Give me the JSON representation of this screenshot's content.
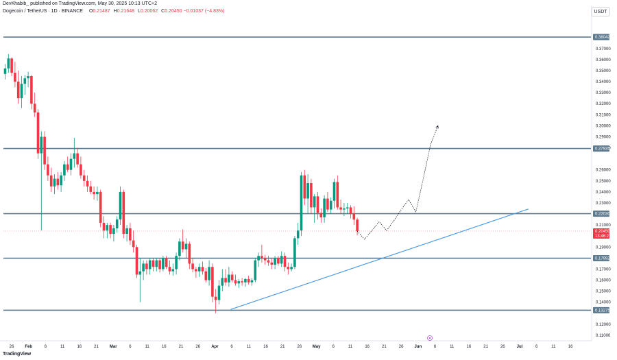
{
  "header": {
    "publish_line": "DevKhabib_ published on TradingView.com, May 30, 2025 10:13 UTC+2",
    "symbol": "Dogecoin / TetherUS · 1D · BINANCE",
    "ohlc": [
      {
        "label": "O",
        "value": "0.21487"
      },
      {
        "label": "H",
        "value": "0.21648"
      },
      {
        "label": "L",
        "value": "0.20062"
      },
      {
        "label": "C",
        "value": "0.20450"
      }
    ],
    "change": "−0.01037 (−4.83%)",
    "currency": "USDT"
  },
  "footer": {
    "logo": "TradingView"
  },
  "colors": {
    "up": "#089981",
    "down": "#f23645",
    "level": "#5d7a8f",
    "trend": "#4c9be6",
    "projection": "#131722",
    "event": "#b055d6"
  },
  "chart_data": {
    "type": "candlestick",
    "price_axis": {
      "ticks": [
        "0.37000",
        "0.36000",
        "0.35000",
        "0.34000",
        "0.33000",
        "0.32000",
        "0.31000",
        "0.30000",
        "0.29000",
        "0.28000",
        "0.26000",
        "0.25000",
        "0.24000",
        "0.23000",
        "0.21000",
        "0.19000",
        "0.17000",
        "0.16000",
        "0.15000",
        "0.14000",
        "0.12000",
        "0.11000"
      ],
      "range": [
        0.1075,
        0.3935
      ]
    },
    "date_axis": {
      "ticks": [
        "26",
        "Feb",
        "6",
        "11",
        "16",
        "21",
        "Mar",
        "6",
        "11",
        "16",
        "21",
        "26",
        "Apr",
        "6",
        "11",
        "16",
        "21",
        "26",
        "May",
        "6",
        "11",
        "16",
        "21",
        "26",
        "Jun",
        "6",
        "11",
        "16",
        "21",
        "26",
        "Jul",
        "6",
        "11",
        "16"
      ]
    },
    "levels": [
      "0.38042",
      "0.27935",
      "0.22030",
      "0.17992",
      "0.13275"
    ],
    "last_price": {
      "value": "0.20450",
      "countdown": "13:46:27"
    },
    "candles": [
      [
        0.347,
        0.356,
        0.342,
        0.352
      ],
      [
        0.352,
        0.365,
        0.348,
        0.361
      ],
      [
        0.361,
        0.362,
        0.345,
        0.348
      ],
      [
        0.348,
        0.358,
        0.335,
        0.34
      ],
      [
        0.34,
        0.35,
        0.32,
        0.325
      ],
      [
        0.325,
        0.345,
        0.316,
        0.338
      ],
      [
        0.338,
        0.346,
        0.328,
        0.343
      ],
      [
        0.343,
        0.349,
        0.335,
        0.345
      ],
      [
        0.345,
        0.346,
        0.315,
        0.32
      ],
      [
        0.32,
        0.33,
        0.308,
        0.312
      ],
      [
        0.312,
        0.315,
        0.27,
        0.275
      ],
      [
        0.275,
        0.295,
        0.205,
        0.29
      ],
      [
        0.29,
        0.295,
        0.26,
        0.265
      ],
      [
        0.265,
        0.272,
        0.25,
        0.255
      ],
      [
        0.255,
        0.262,
        0.24,
        0.245
      ],
      [
        0.245,
        0.256,
        0.238,
        0.252
      ],
      [
        0.252,
        0.258,
        0.242,
        0.246
      ],
      [
        0.246,
        0.258,
        0.24,
        0.255
      ],
      [
        0.255,
        0.268,
        0.25,
        0.265
      ],
      [
        0.265,
        0.272,
        0.258,
        0.26
      ],
      [
        0.26,
        0.275,
        0.255,
        0.27
      ],
      [
        0.27,
        0.289,
        0.262,
        0.275
      ],
      [
        0.275,
        0.28,
        0.262,
        0.265
      ],
      [
        0.265,
        0.272,
        0.252,
        0.255
      ],
      [
        0.255,
        0.26,
        0.245,
        0.25
      ],
      [
        0.25,
        0.255,
        0.24,
        0.245
      ],
      [
        0.245,
        0.25,
        0.238,
        0.24
      ],
      [
        0.24,
        0.245,
        0.233,
        0.238
      ],
      [
        0.238,
        0.245,
        0.232,
        0.24
      ],
      [
        0.24,
        0.242,
        0.208,
        0.212
      ],
      [
        0.212,
        0.218,
        0.198,
        0.205
      ],
      [
        0.205,
        0.212,
        0.198,
        0.21
      ],
      [
        0.21,
        0.212,
        0.198,
        0.202
      ],
      [
        0.202,
        0.21,
        0.195,
        0.207
      ],
      [
        0.207,
        0.218,
        0.203,
        0.215
      ],
      [
        0.215,
        0.245,
        0.21,
        0.24
      ],
      [
        0.24,
        0.242,
        0.198,
        0.202
      ],
      [
        0.202,
        0.21,
        0.195,
        0.207
      ],
      [
        0.207,
        0.212,
        0.192,
        0.196
      ],
      [
        0.196,
        0.205,
        0.185,
        0.19
      ],
      [
        0.19,
        0.192,
        0.162,
        0.165
      ],
      [
        0.165,
        0.18,
        0.14,
        0.168
      ],
      [
        0.168,
        0.178,
        0.16,
        0.175
      ],
      [
        0.175,
        0.178,
        0.165,
        0.17
      ],
      [
        0.17,
        0.18,
        0.165,
        0.178
      ],
      [
        0.178,
        0.18,
        0.168,
        0.172
      ],
      [
        0.172,
        0.18,
        0.168,
        0.178
      ],
      [
        0.178,
        0.18,
        0.167,
        0.17
      ],
      [
        0.17,
        0.182,
        0.168,
        0.18
      ],
      [
        0.18,
        0.182,
        0.17,
        0.172
      ],
      [
        0.172,
        0.178,
        0.165,
        0.168
      ],
      [
        0.168,
        0.175,
        0.164,
        0.17
      ],
      [
        0.17,
        0.185,
        0.165,
        0.182
      ],
      [
        0.182,
        0.198,
        0.178,
        0.195
      ],
      [
        0.195,
        0.206,
        0.185,
        0.188
      ],
      [
        0.188,
        0.198,
        0.18,
        0.193
      ],
      [
        0.193,
        0.195,
        0.17,
        0.175
      ],
      [
        0.175,
        0.18,
        0.167,
        0.17
      ],
      [
        0.17,
        0.172,
        0.162,
        0.168
      ],
      [
        0.168,
        0.175,
        0.163,
        0.172
      ],
      [
        0.172,
        0.177,
        0.165,
        0.168
      ],
      [
        0.168,
        0.171,
        0.158,
        0.16
      ],
      [
        0.16,
        0.178,
        0.155,
        0.172
      ],
      [
        0.172,
        0.175,
        0.14,
        0.145
      ],
      [
        0.145,
        0.152,
        0.13,
        0.142
      ],
      [
        0.142,
        0.16,
        0.138,
        0.155
      ],
      [
        0.155,
        0.17,
        0.15,
        0.162
      ],
      [
        0.162,
        0.17,
        0.155,
        0.158
      ],
      [
        0.158,
        0.172,
        0.154,
        0.165
      ],
      [
        0.165,
        0.168,
        0.158,
        0.16
      ],
      [
        0.16,
        0.165,
        0.155,
        0.157
      ],
      [
        0.157,
        0.161,
        0.153,
        0.159
      ],
      [
        0.159,
        0.162,
        0.155,
        0.158
      ],
      [
        0.158,
        0.162,
        0.154,
        0.161
      ],
      [
        0.161,
        0.164,
        0.156,
        0.158
      ],
      [
        0.158,
        0.162,
        0.155,
        0.16
      ],
      [
        0.16,
        0.18,
        0.158,
        0.178
      ],
      [
        0.178,
        0.185,
        0.172,
        0.182
      ],
      [
        0.182,
        0.192,
        0.176,
        0.18
      ],
      [
        0.18,
        0.183,
        0.174,
        0.178
      ],
      [
        0.178,
        0.182,
        0.173,
        0.176
      ],
      [
        0.176,
        0.18,
        0.17,
        0.174
      ],
      [
        0.174,
        0.182,
        0.17,
        0.18
      ],
      [
        0.18,
        0.182,
        0.173,
        0.175
      ],
      [
        0.175,
        0.186,
        0.172,
        0.182
      ],
      [
        0.182,
        0.185,
        0.168,
        0.172
      ],
      [
        0.172,
        0.176,
        0.165,
        0.17
      ],
      [
        0.17,
        0.175,
        0.168,
        0.172
      ],
      [
        0.172,
        0.2,
        0.17,
        0.198
      ],
      [
        0.198,
        0.212,
        0.192,
        0.205
      ],
      [
        0.205,
        0.258,
        0.2,
        0.255
      ],
      [
        0.255,
        0.26,
        0.228,
        0.234
      ],
      [
        0.234,
        0.256,
        0.22,
        0.248
      ],
      [
        0.248,
        0.252,
        0.22,
        0.226
      ],
      [
        0.226,
        0.238,
        0.212,
        0.236
      ],
      [
        0.236,
        0.24,
        0.215,
        0.221
      ],
      [
        0.221,
        0.225,
        0.212,
        0.217
      ],
      [
        0.217,
        0.237,
        0.212,
        0.234
      ],
      [
        0.234,
        0.24,
        0.222,
        0.224
      ],
      [
        0.224,
        0.235,
        0.22,
        0.232
      ],
      [
        0.232,
        0.252,
        0.225,
        0.249
      ],
      [
        0.249,
        0.255,
        0.224,
        0.226
      ],
      [
        0.226,
        0.233,
        0.22,
        0.224
      ],
      [
        0.224,
        0.23,
        0.218,
        0.225
      ],
      [
        0.225,
        0.23,
        0.22,
        0.226
      ],
      [
        0.226,
        0.228,
        0.216,
        0.22
      ],
      [
        0.22,
        0.227,
        0.21,
        0.2149
      ],
      [
        0.2149,
        0.2165,
        0.2006,
        0.2045
      ]
    ],
    "trendline": [
      [
        0.1335,
        0.2245
      ]
    ],
    "projection": [
      0.2045,
      0.197,
      0.205,
      0.213,
      0.205,
      0.214,
      0.224,
      0.233,
      0.222,
      0.252,
      0.283,
      0.3
    ]
  }
}
